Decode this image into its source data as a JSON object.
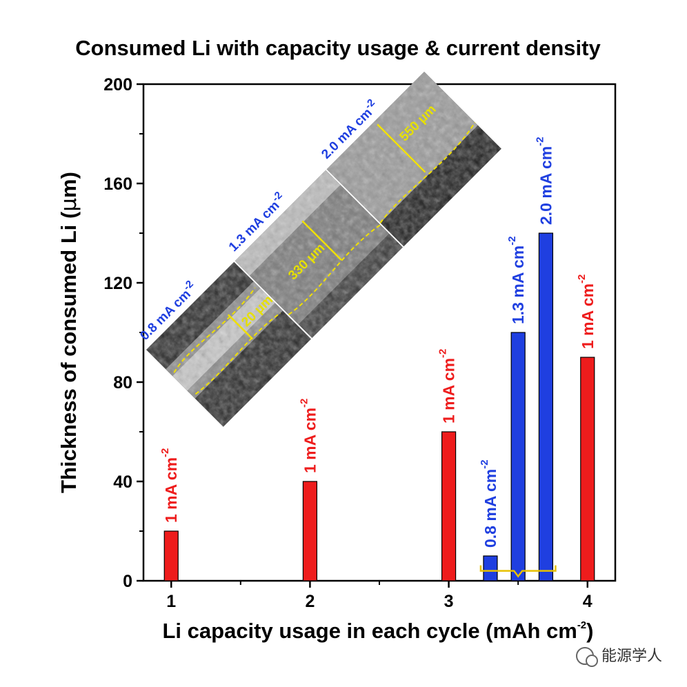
{
  "chart_data": {
    "type": "bar",
    "title": "Consumed Li with capacity usage & current density",
    "xlabel_main": "Li capacity usage in each cycle (mAh cm",
    "xlabel_sup": "-2",
    "xlabel_close": ")",
    "ylabel_main": "Thickness of consumed Li (",
    "ylabel_mu": "μ",
    "ylabel_close": "m)",
    "xlim": [
      0.8,
      4.2
    ],
    "ylim": [
      0,
      200
    ],
    "xticks": [
      1,
      2,
      3,
      4
    ],
    "yticks": [
      0,
      40,
      80,
      120,
      160,
      200
    ],
    "bars": [
      {
        "x": 1.0,
        "value": 20,
        "color": "#ee1c1c",
        "label": "1 mA cm",
        "sup": "-2"
      },
      {
        "x": 2.0,
        "value": 40,
        "color": "#ee1c1c",
        "label": "1 mA cm",
        "sup": "-2"
      },
      {
        "x": 3.0,
        "value": 60,
        "color": "#ee1c1c",
        "label": "1 mA cm",
        "sup": "-2"
      },
      {
        "x": 3.3,
        "value": 10,
        "color": "#1f3fe0",
        "label": "0.8 mA cm",
        "sup": "-2"
      },
      {
        "x": 3.5,
        "value": 100,
        "color": "#1f3fe0",
        "label": "1.3 mA cm",
        "sup": "-2"
      },
      {
        "x": 3.7,
        "value": 140,
        "color": "#1f3fe0",
        "label": "2.0 mA cm",
        "sup": "-2"
      },
      {
        "x": 4.0,
        "value": 90,
        "color": "#ee1c1c",
        "label": "1 mA cm",
        "sup": "-2"
      }
    ],
    "bracket": {
      "x_start": 3.3,
      "x_end": 3.7,
      "color": "#e8c000"
    },
    "inset": {
      "panels": [
        {
          "current": "0.8 mA cm",
          "sup": "-2",
          "scale": "20 μm",
          "color": "#1f3fe0"
        },
        {
          "current": "1.3 mA cm",
          "sup": "-2",
          "scale": "330 μm",
          "color": "#1f3fe0"
        },
        {
          "current": "2.0 mA cm",
          "sup": "-2",
          "scale": "550 μm",
          "color": "#1f3fe0"
        }
      ]
    }
  },
  "watermark": "能源学人",
  "colors": {
    "red": "#ee1c1c",
    "blue": "#1f3fe0",
    "scale": "#e6e000"
  }
}
